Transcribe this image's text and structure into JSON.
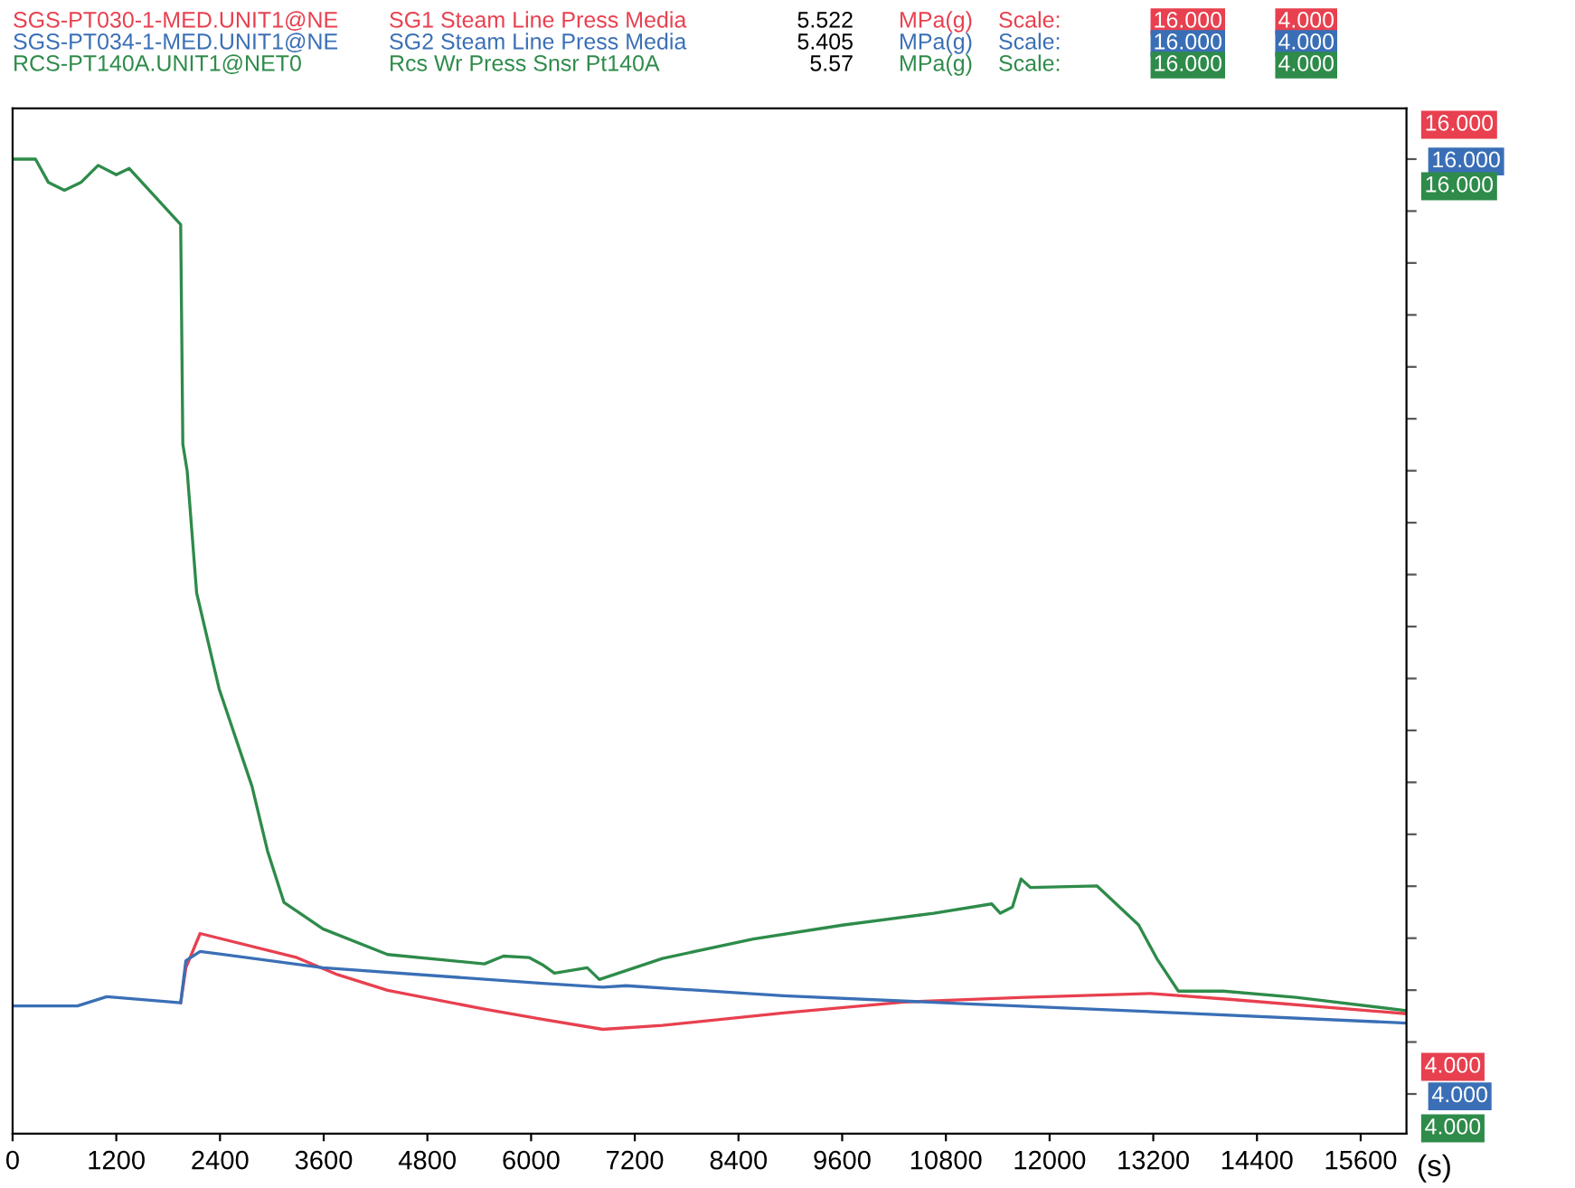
{
  "chart_data": {
    "type": "line",
    "xlabel": "(s)",
    "xlim": [
      0,
      16130
    ],
    "xticks": [
      0,
      1200,
      2400,
      3600,
      4800,
      6000,
      7200,
      8400,
      9600,
      10800,
      12000,
      13200,
      14400,
      15600
    ],
    "ylim": [
      3.49,
      16.65
    ],
    "yticks": [
      {
        "value": 16,
        "label": "16.000"
      },
      {
        "value": 15.333,
        "label": null
      },
      {
        "value": 14.667,
        "label": null
      },
      {
        "value": 14,
        "label": null
      },
      {
        "value": 13.333,
        "label": null
      },
      {
        "value": 12.667,
        "label": null
      },
      {
        "value": 12,
        "label": null
      },
      {
        "value": 11.333,
        "label": null
      },
      {
        "value": 10.667,
        "label": null
      },
      {
        "value": 10,
        "label": null
      },
      {
        "value": 9.333,
        "label": null
      },
      {
        "value": 8.667,
        "label": null
      },
      {
        "value": 8,
        "label": null
      },
      {
        "value": 7.333,
        "label": null
      },
      {
        "value": 6.667,
        "label": null
      },
      {
        "value": 6,
        "label": null
      },
      {
        "value": 5.333,
        "label": null
      },
      {
        "value": 4.667,
        "label": null
      },
      {
        "value": 4,
        "label": "4.000"
      }
    ],
    "legend": "top",
    "marker": "none",
    "line_style": "solid",
    "annotations": [
      "SG1 Steam Line Press Media",
      "5.522",
      "MPa(g)",
      "Scale:",
      "16.000",
      "4.000",
      "SG2 Steam Line Press Media",
      "5.405",
      "MPa(g)",
      "Scale:",
      "16.000",
      "4.000",
      "Rcs Wr Press Snsr Pt140A",
      "5.57",
      "MPa(g)",
      "Scale:",
      "16.000",
      "4.000"
    ],
    "series": [
      {
        "name": "SGS-PT030-1-MED.UNIT1@NE",
        "color": "#e8404f",
        "axis": "y",
        "x": [
          1945,
          2005,
          2170,
          3290,
          3740,
          4340,
          5460,
          6130,
          6830,
          7520,
          8920,
          10310,
          11710,
          13170,
          14140,
          16130
        ],
        "values": [
          5.17,
          5.62,
          6.06,
          5.75,
          5.54,
          5.33,
          5.09,
          4.96,
          4.83,
          4.88,
          5.04,
          5.18,
          5.24,
          5.29,
          5.21,
          5.03
        ]
      },
      {
        "name": "SGS-PT034-1-MED.UNIT1@NE",
        "color": "#3a6fb6",
        "axis": "y",
        "x": [
          20,
          750,
          1090,
          1945,
          2005,
          2170,
          3590,
          6130,
          6830,
          7100,
          8920,
          11000,
          13100,
          16130
        ],
        "values": [
          5.13,
          5.13,
          5.25,
          5.17,
          5.71,
          5.83,
          5.62,
          5.42,
          5.37,
          5.39,
          5.26,
          5.16,
          5.06,
          4.91
        ]
      },
      {
        "name": "RCS-PT140A.UNIT1@NET0",
        "color": "#2e8b4a",
        "axis": "y",
        "x": [
          20,
          265,
          415,
          600,
          790,
          990,
          1200,
          1350,
          1945,
          1970,
          2020,
          2130,
          2390,
          2770,
          2950,
          3140,
          3590,
          4340,
          5460,
          5680,
          5980,
          6130,
          6270,
          6650,
          6790,
          7520,
          8570,
          9620,
          10660,
          11330,
          11430,
          11570,
          11670,
          11780,
          12550,
          13030,
          13240,
          13490,
          14010,
          14850,
          16130
        ],
        "values": [
          16.0,
          16.0,
          15.7,
          15.6,
          15.7,
          15.92,
          15.8,
          15.88,
          15.16,
          12.34,
          12.0,
          10.43,
          9.2,
          7.95,
          7.12,
          6.46,
          6.12,
          5.79,
          5.67,
          5.77,
          5.75,
          5.66,
          5.55,
          5.62,
          5.47,
          5.74,
          5.99,
          6.17,
          6.32,
          6.44,
          6.32,
          6.4,
          6.76,
          6.65,
          6.67,
          6.17,
          5.74,
          5.32,
          5.32,
          5.24,
          5.07
        ]
      }
    ]
  }
}
